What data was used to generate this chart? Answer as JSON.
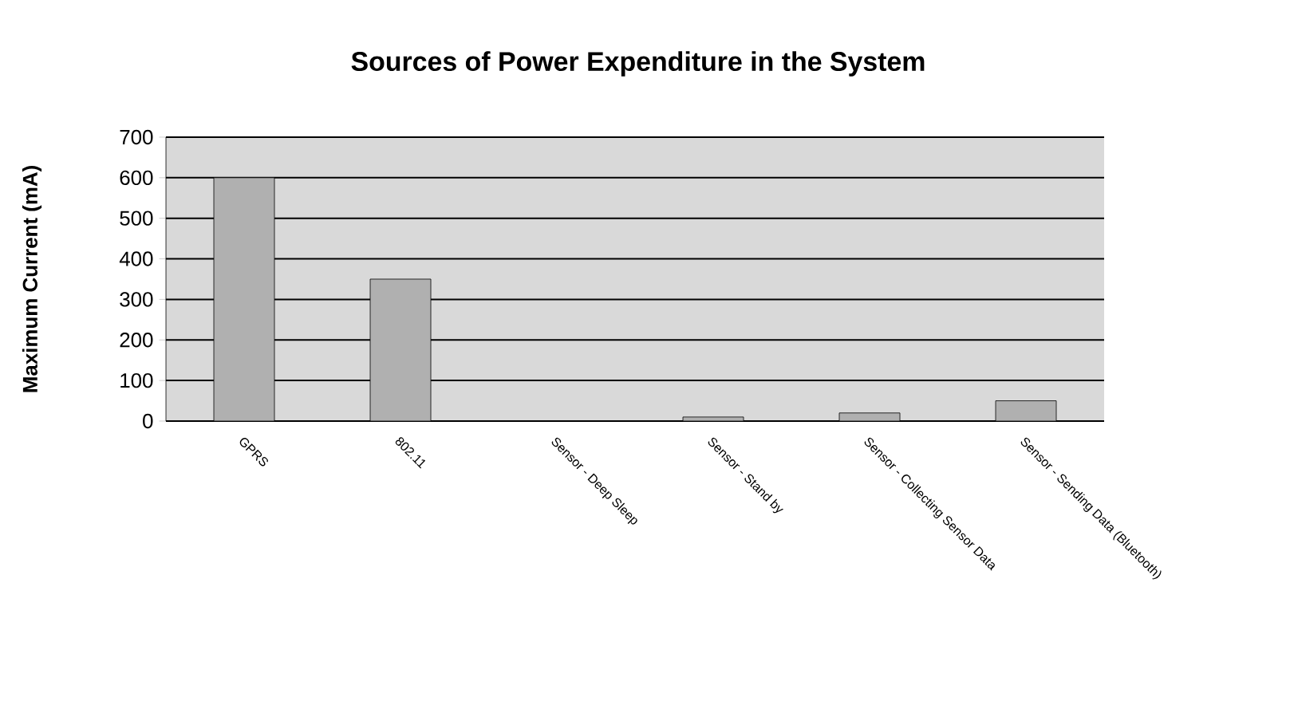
{
  "chart_data": {
    "type": "bar",
    "title": "Sources of Power Expenditure in the System",
    "ylabel": "Maximum Current (mA)",
    "categories": [
      "GPRS",
      "802.11",
      "Sensor - Deep Sleep",
      "Sensor - Stand by",
      "Sensor - Collecting Sensor Data",
      "Sensor - Sending Data (Bluetooth)"
    ],
    "values": [
      600,
      350,
      0,
      10,
      20,
      50
    ],
    "color": "#b0b0b0",
    "ylim": [
      0,
      700
    ],
    "yticks": [
      0,
      100,
      200,
      300,
      400,
      500,
      600,
      700
    ],
    "grid": "y"
  }
}
